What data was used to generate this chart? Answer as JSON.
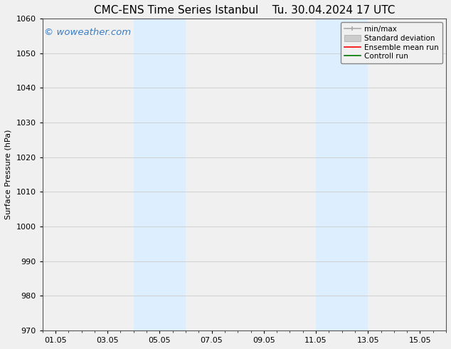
{
  "title": "CMC-ENS Time Series Istanbul",
  "title2": "Tu. 30.04.2024 17 UTC",
  "ylabel": "Surface Pressure (hPa)",
  "ylim": [
    970,
    1060
  ],
  "yticks": [
    970,
    980,
    990,
    1000,
    1010,
    1020,
    1030,
    1040,
    1050,
    1060
  ],
  "xtick_labels": [
    "01.05",
    "03.05",
    "05.05",
    "07.05",
    "09.05",
    "11.05",
    "13.05",
    "15.05"
  ],
  "xtick_positions": [
    0,
    2,
    4,
    6,
    8,
    10,
    12,
    14
  ],
  "xlim": [
    -0.5,
    15.0
  ],
  "shaded_bands": [
    {
      "x_start": 3.0,
      "x_end": 5.0
    },
    {
      "x_start": 10.0,
      "x_end": 12.0
    }
  ],
  "shaded_color": "#ddeeff",
  "watermark_text": "© woweather.com",
  "watermark_color": "#3a7ec6",
  "watermark_fontsize": 9.5,
  "bg_color": "#f0f0f0",
  "plot_bg_color": "#f0f0f0",
  "grid_color": "#cccccc",
  "legend_labels": [
    "min/max",
    "Standard deviation",
    "Ensemble mean run",
    "Controll run"
  ],
  "legend_colors": [
    "#aaaaaa",
    "#cccccc",
    "#ff0000",
    "#007700"
  ],
  "title_fontsize": 11,
  "axis_label_fontsize": 8,
  "tick_fontsize": 8,
  "legend_fontsize": 7.5
}
